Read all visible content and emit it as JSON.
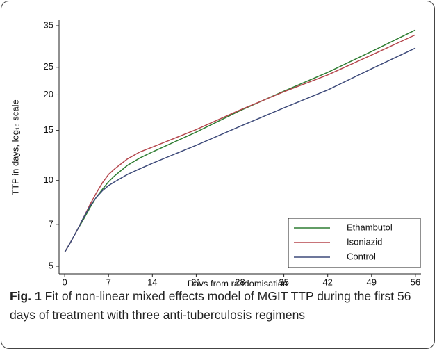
{
  "chart_data": {
    "type": "line",
    "y_label": "TTP in days, log₁₀ scale",
    "x_label": "Days from randomisation",
    "x": [
      0,
      1,
      2,
      3,
      4,
      5,
      6,
      7,
      8,
      10,
      12,
      14,
      21,
      28,
      35,
      42,
      49,
      56
    ],
    "series": [
      {
        "name": "Ethambutol",
        "color": "#2e7d32",
        "values": [
          5.6,
          6.1,
          6.7,
          7.3,
          8.0,
          8.7,
          9.3,
          9.9,
          10.4,
          11.3,
          12.0,
          12.6,
          14.8,
          17.6,
          20.6,
          24.0,
          28.4,
          33.8
        ]
      },
      {
        "name": "Isoniazid",
        "color": "#b5474d",
        "values": [
          5.6,
          6.1,
          6.7,
          7.4,
          8.2,
          9.0,
          9.8,
          10.5,
          11.0,
          11.9,
          12.6,
          13.1,
          15.1,
          17.7,
          20.5,
          23.5,
          27.6,
          32.5
        ]
      },
      {
        "name": "Control",
        "color": "#3d4a7a",
        "values": [
          5.6,
          6.1,
          6.7,
          7.4,
          8.1,
          8.7,
          9.2,
          9.6,
          9.9,
          10.5,
          11.0,
          11.5,
          13.3,
          15.5,
          18.0,
          20.8,
          24.7,
          29.2
        ]
      }
    ],
    "xlim": [
      -0.9,
      56.9
    ],
    "xticks": [
      0,
      7,
      14,
      21,
      28,
      35,
      42,
      49,
      56
    ],
    "ylim": [
      4.7,
      36.6
    ],
    "yticks": [
      5,
      7,
      10,
      15,
      20,
      25,
      35
    ],
    "y_log": true,
    "grid": false,
    "legend": "lower right"
  },
  "caption": {
    "label": "Fig. 1",
    "text": "Fit of non-linear mixed effects model of MGIT TTP during the first 56 days of treatment with three anti-tuberculosis regimens"
  }
}
